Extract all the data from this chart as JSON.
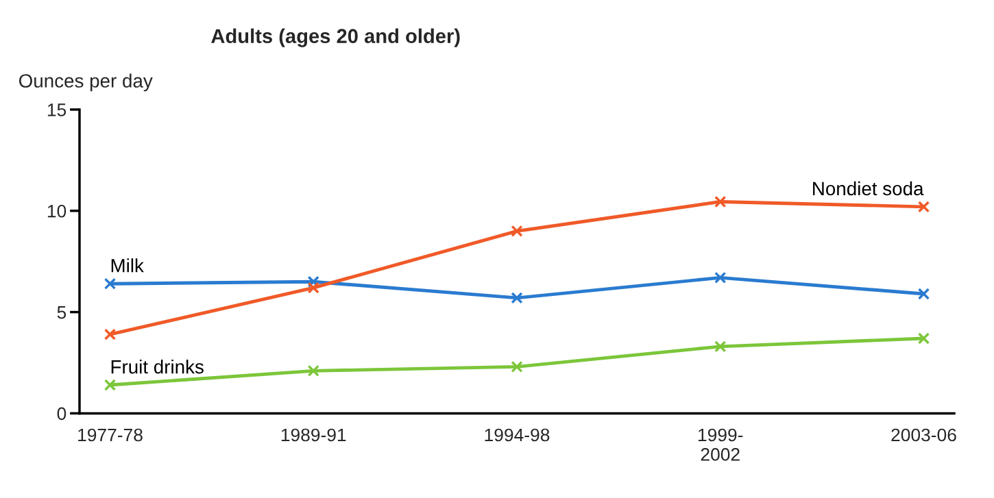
{
  "chart_data": {
    "type": "line",
    "title": "Adults (ages 20 and older)",
    "ylabel": "Ounces per day",
    "categories": [
      "1977-78",
      "1989-91",
      "1994-98",
      "1999-\n2002",
      "2003-06"
    ],
    "series": [
      {
        "name": "Milk",
        "color": "#2a7bd0",
        "values": [
          6.4,
          6.5,
          5.7,
          6.7,
          5.9
        ]
      },
      {
        "name": "Nondiet soda",
        "color": "#f05a28",
        "values": [
          3.9,
          6.2,
          9.0,
          10.45,
          10.2
        ]
      },
      {
        "name": "Fruit drinks",
        "color": "#7cc63a",
        "values": [
          1.4,
          2.1,
          2.3,
          3.3,
          3.7
        ]
      }
    ],
    "ylim": [
      0,
      15
    ],
    "yticks": [
      0,
      5,
      10,
      15
    ],
    "grid": false,
    "marker": "cross",
    "line_style": "solid"
  }
}
